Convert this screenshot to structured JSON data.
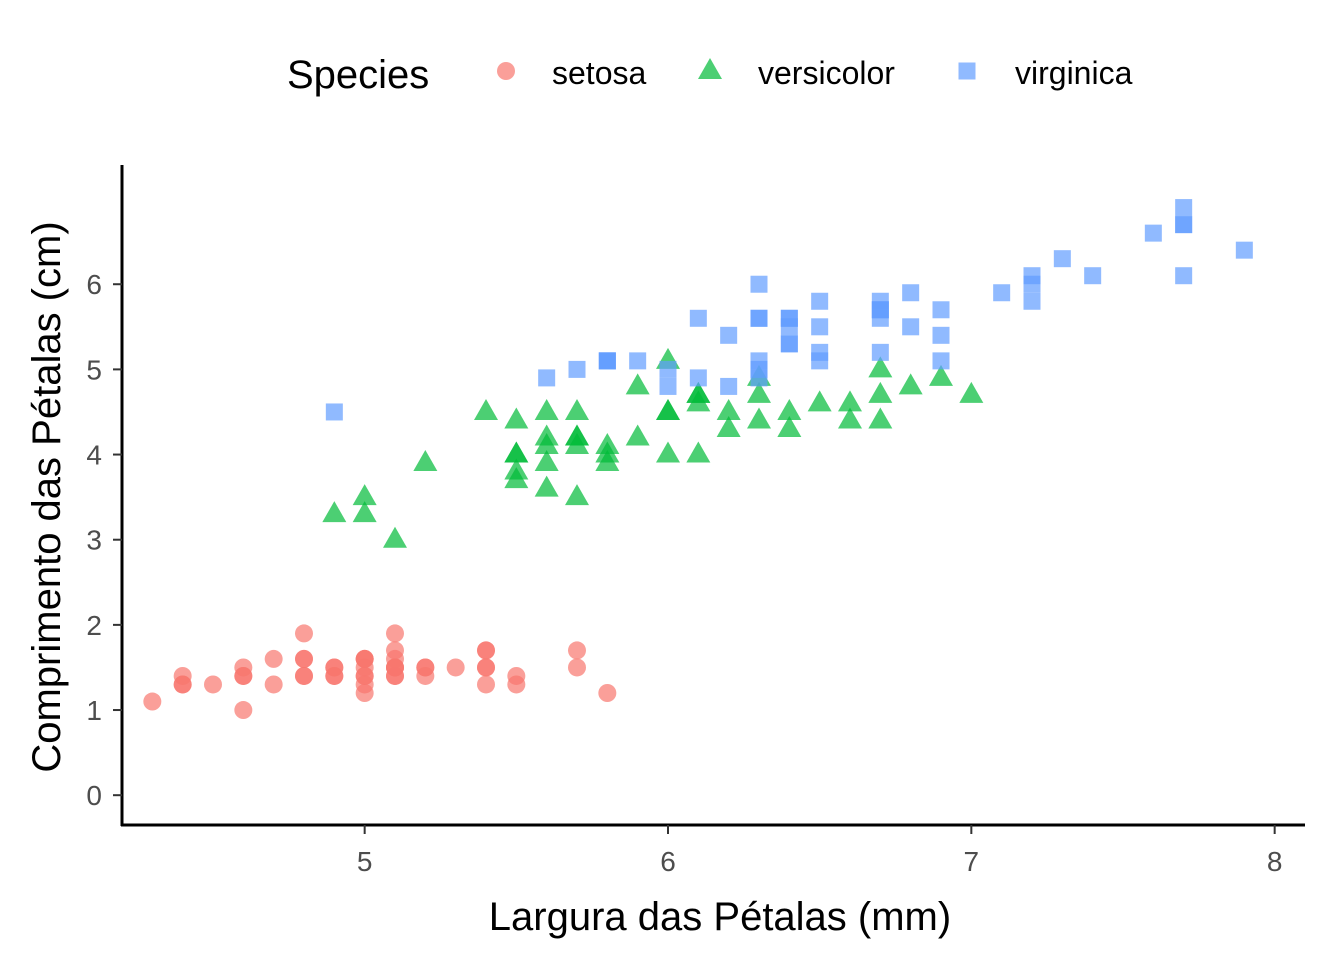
{
  "chart_data": {
    "type": "scatter",
    "title": "",
    "xlabel": "Largura das Pétalas (mm)",
    "ylabel": "Comprimento das Pétalas (cm)",
    "xlim": [
      4.2,
      8.1
    ],
    "ylim": [
      -0.35,
      7.4
    ],
    "x_ticks": [
      "5",
      "6",
      "7",
      "8"
    ],
    "y_ticks": [
      "0",
      "1",
      "2",
      "3",
      "4",
      "5",
      "6"
    ],
    "grid": false,
    "legend": {
      "title": "Species",
      "position": "top"
    },
    "series": [
      {
        "name": "setosa",
        "marker": "circle",
        "color": "#F8766D",
        "points": [
          [
            5.1,
            1.4
          ],
          [
            4.9,
            1.4
          ],
          [
            4.7,
            1.3
          ],
          [
            4.6,
            1.5
          ],
          [
            5.0,
            1.4
          ],
          [
            5.4,
            1.7
          ],
          [
            4.6,
            1.4
          ],
          [
            5.0,
            1.5
          ],
          [
            4.4,
            1.4
          ],
          [
            4.9,
            1.5
          ],
          [
            5.4,
            1.5
          ],
          [
            4.8,
            1.6
          ],
          [
            4.8,
            1.4
          ],
          [
            4.3,
            1.1
          ],
          [
            5.8,
            1.2
          ],
          [
            5.7,
            1.5
          ],
          [
            5.4,
            1.3
          ],
          [
            5.1,
            1.4
          ],
          [
            5.7,
            1.7
          ],
          [
            5.1,
            1.5
          ],
          [
            5.4,
            1.7
          ],
          [
            5.1,
            1.5
          ],
          [
            4.6,
            1.0
          ],
          [
            5.1,
            1.7
          ],
          [
            4.8,
            1.9
          ],
          [
            5.0,
            1.6
          ],
          [
            5.0,
            1.6
          ],
          [
            5.2,
            1.5
          ],
          [
            5.2,
            1.4
          ],
          [
            4.7,
            1.6
          ],
          [
            4.8,
            1.6
          ],
          [
            5.4,
            1.5
          ],
          [
            5.2,
            1.5
          ],
          [
            5.5,
            1.4
          ],
          [
            4.9,
            1.5
          ],
          [
            5.0,
            1.2
          ],
          [
            5.5,
            1.3
          ],
          [
            4.9,
            1.4
          ],
          [
            4.4,
            1.3
          ],
          [
            5.1,
            1.5
          ],
          [
            5.0,
            1.3
          ],
          [
            4.5,
            1.3
          ],
          [
            4.4,
            1.3
          ],
          [
            5.0,
            1.6
          ],
          [
            5.1,
            1.9
          ],
          [
            4.8,
            1.4
          ],
          [
            5.1,
            1.6
          ],
          [
            4.6,
            1.4
          ],
          [
            5.3,
            1.5
          ],
          [
            5.0,
            1.4
          ]
        ]
      },
      {
        "name": "versicolor",
        "marker": "triangle",
        "color": "#00BA38",
        "points": [
          [
            7.0,
            4.7
          ],
          [
            6.4,
            4.5
          ],
          [
            6.9,
            4.9
          ],
          [
            5.5,
            4.0
          ],
          [
            6.5,
            4.6
          ],
          [
            5.7,
            4.5
          ],
          [
            6.3,
            4.7
          ],
          [
            4.9,
            3.3
          ],
          [
            6.6,
            4.6
          ],
          [
            5.2,
            3.9
          ],
          [
            5.0,
            3.5
          ],
          [
            5.9,
            4.2
          ],
          [
            6.0,
            4.0
          ],
          [
            6.1,
            4.7
          ],
          [
            5.6,
            3.6
          ],
          [
            6.7,
            4.4
          ],
          [
            5.6,
            4.5
          ],
          [
            5.8,
            4.1
          ],
          [
            6.2,
            4.5
          ],
          [
            5.6,
            3.9
          ],
          [
            5.9,
            4.8
          ],
          [
            6.1,
            4.0
          ],
          [
            6.3,
            4.9
          ],
          [
            6.1,
            4.7
          ],
          [
            6.4,
            4.3
          ],
          [
            6.6,
            4.4
          ],
          [
            6.8,
            4.8
          ],
          [
            6.7,
            5.0
          ],
          [
            6.0,
            4.5
          ],
          [
            5.7,
            3.5
          ],
          [
            5.5,
            3.8
          ],
          [
            5.5,
            3.7
          ],
          [
            5.8,
            3.9
          ],
          [
            6.0,
            5.1
          ],
          [
            5.4,
            4.5
          ],
          [
            6.0,
            4.5
          ],
          [
            6.7,
            4.7
          ],
          [
            6.3,
            4.4
          ],
          [
            5.6,
            4.1
          ],
          [
            5.5,
            4.0
          ],
          [
            5.5,
            4.4
          ],
          [
            6.1,
            4.6
          ],
          [
            5.8,
            4.0
          ],
          [
            5.0,
            3.3
          ],
          [
            5.6,
            4.2
          ],
          [
            5.7,
            4.2
          ],
          [
            5.7,
            4.2
          ],
          [
            6.2,
            4.3
          ],
          [
            5.1,
            3.0
          ],
          [
            5.7,
            4.1
          ]
        ]
      },
      {
        "name": "virginica",
        "marker": "square",
        "color": "#619CFF",
        "points": [
          [
            6.3,
            6.0
          ],
          [
            5.8,
            5.1
          ],
          [
            7.1,
            5.9
          ],
          [
            6.3,
            5.6
          ],
          [
            6.5,
            5.8
          ],
          [
            7.6,
            6.6
          ],
          [
            4.9,
            4.5
          ],
          [
            7.3,
            6.3
          ],
          [
            6.7,
            5.8
          ],
          [
            7.2,
            6.1
          ],
          [
            6.5,
            5.1
          ],
          [
            6.4,
            5.3
          ],
          [
            6.8,
            5.5
          ],
          [
            5.7,
            5.0
          ],
          [
            5.8,
            5.1
          ],
          [
            6.4,
            5.3
          ],
          [
            6.5,
            5.5
          ],
          [
            7.7,
            6.7
          ],
          [
            7.7,
            6.9
          ],
          [
            6.0,
            5.0
          ],
          [
            6.9,
            5.7
          ],
          [
            5.6,
            4.9
          ],
          [
            7.7,
            6.7
          ],
          [
            6.3,
            4.9
          ],
          [
            6.7,
            5.7
          ],
          [
            7.2,
            6.0
          ],
          [
            6.2,
            4.8
          ],
          [
            6.1,
            4.9
          ],
          [
            6.4,
            5.6
          ],
          [
            7.2,
            5.8
          ],
          [
            7.4,
            6.1
          ],
          [
            7.9,
            6.4
          ],
          [
            6.4,
            5.6
          ],
          [
            6.3,
            5.1
          ],
          [
            6.1,
            5.6
          ],
          [
            7.7,
            6.1
          ],
          [
            6.3,
            5.6
          ],
          [
            6.4,
            5.5
          ],
          [
            6.0,
            4.8
          ],
          [
            6.9,
            5.4
          ],
          [
            6.7,
            5.6
          ],
          [
            6.9,
            5.1
          ],
          [
            5.8,
            5.1
          ],
          [
            6.8,
            5.9
          ],
          [
            6.7,
            5.7
          ],
          [
            6.7,
            5.2
          ],
          [
            6.3,
            5.0
          ],
          [
            6.5,
            5.2
          ],
          [
            6.2,
            5.4
          ],
          [
            5.9,
            5.1
          ]
        ]
      }
    ]
  }
}
